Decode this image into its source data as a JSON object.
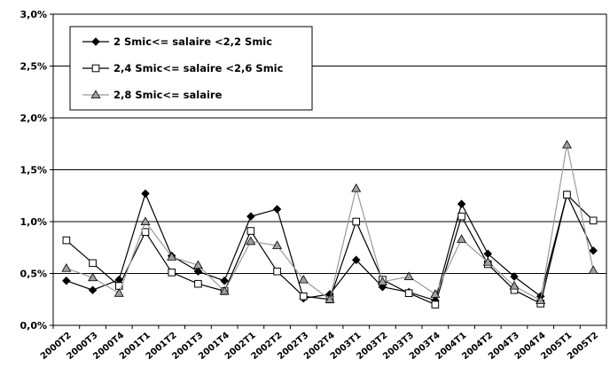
{
  "chart_data": {
    "type": "line",
    "title": "",
    "xlabel": "",
    "ylabel": "",
    "ylim": [
      0,
      3.0
    ],
    "yticks": [
      "0,0%",
      "0,5%",
      "1,0%",
      "1,5%",
      "2,0%",
      "2,5%",
      "3,0%"
    ],
    "ytick_values": [
      0,
      0.5,
      1.0,
      1.5,
      2.0,
      2.5,
      3.0
    ],
    "grid": "horizontal",
    "legend_position": "top-left",
    "categories": [
      "2000T2",
      "2000T3",
      "2000T4",
      "2001T1",
      "2001T2",
      "2001T3",
      "2001T4",
      "2002T1",
      "2002T2",
      "2002T3",
      "2002T4",
      "2003T1",
      "2003T2",
      "2003T3",
      "2003T4",
      "2004T1",
      "2004T2",
      "2004T3",
      "2004T4",
      "2005T1",
      "2005T2"
    ],
    "series": [
      {
        "name": "2 Smic<= salaire <2,2 Smic",
        "marker": "diamond-filled",
        "color": "#000000",
        "values": [
          0.43,
          0.34,
          0.44,
          1.27,
          0.67,
          0.52,
          0.43,
          1.05,
          1.12,
          0.26,
          0.3,
          0.63,
          0.37,
          0.32,
          0.24,
          1.17,
          0.69,
          0.47,
          0.28,
          1.26,
          0.72
        ]
      },
      {
        "name": "2,4 Smic<= salaire <2,6 Smic",
        "marker": "square-open",
        "color": "#000000",
        "values": [
          0.82,
          0.6,
          0.38,
          0.9,
          0.51,
          0.4,
          0.33,
          0.91,
          0.52,
          0.28,
          0.25,
          1.0,
          0.44,
          0.31,
          0.2,
          1.05,
          0.59,
          0.34,
          0.21,
          1.26,
          1.01
        ]
      },
      {
        "name": "2,8 Smic<= salaire",
        "marker": "triangle-gray",
        "color": "#9a9a9a",
        "values": [
          0.55,
          0.46,
          0.31,
          1.0,
          0.66,
          0.58,
          0.33,
          0.81,
          0.77,
          0.44,
          0.25,
          1.32,
          0.42,
          0.47,
          0.3,
          0.83,
          0.61,
          0.38,
          0.24,
          1.74,
          0.53
        ]
      }
    ]
  }
}
